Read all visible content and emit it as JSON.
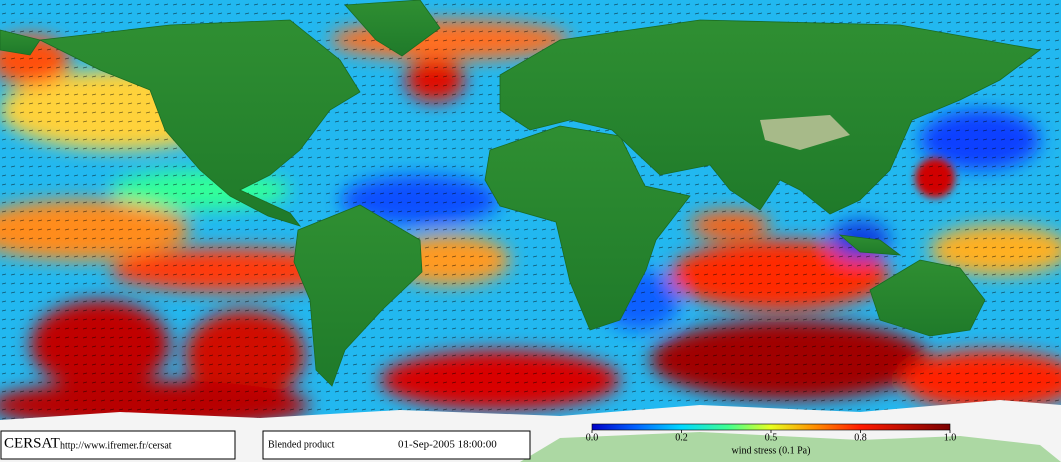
{
  "logo": "CERSAT",
  "url": "http://www.ifremer.fr/cersat",
  "product": "Blended product",
  "datetime": "01-Sep-2005 18:00:00",
  "colorbar": {
    "label": "wind stress (0.1 Pa)",
    "ticks": [
      {
        "value": 0,
        "label": "0.0"
      },
      {
        "value": 0.2,
        "label": "0.2"
      },
      {
        "value": 0.5,
        "label": "0.5"
      },
      {
        "value": 0.8,
        "label": "0.8"
      },
      {
        "value": 1,
        "label": "1.0"
      }
    ]
  }
}
